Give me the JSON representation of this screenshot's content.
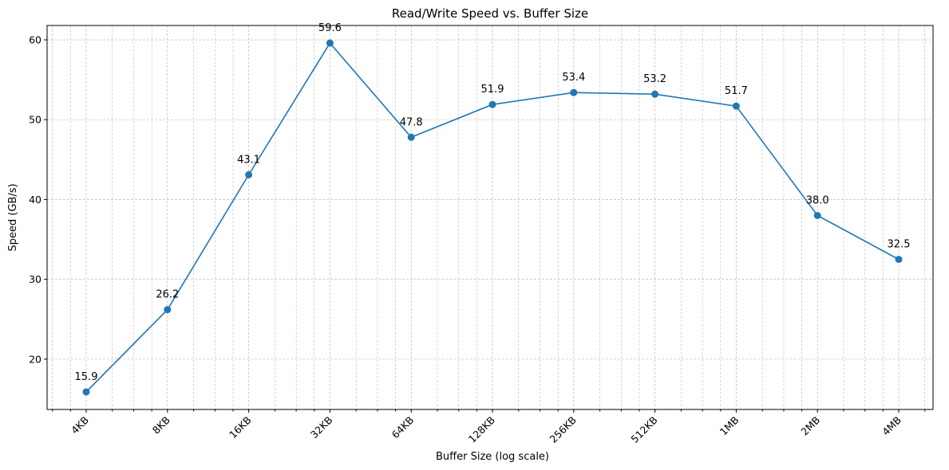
{
  "chart_data": {
    "type": "line",
    "title": "Read/Write Speed vs. Buffer Size",
    "xlabel": "Buffer Size (log scale)",
    "ylabel": "Speed (GB/s)",
    "x_scale": "log2",
    "categories": [
      "4KB",
      "8KB",
      "16KB",
      "32KB",
      "64KB",
      "128KB",
      "256KB",
      "512KB",
      "1MB",
      "2MB",
      "4MB"
    ],
    "x_kb": [
      4,
      8,
      16,
      32,
      64,
      128,
      256,
      512,
      1024,
      2048,
      4096
    ],
    "values": [
      15.9,
      26.2,
      43.1,
      59.6,
      47.8,
      51.9,
      53.4,
      53.2,
      51.7,
      38.0,
      32.5
    ],
    "y_ticks": [
      20,
      30,
      40,
      50,
      60
    ],
    "ylim": [
      13.7,
      61.8
    ],
    "grid": true,
    "line_color": "#1f77b4",
    "marker": "circle",
    "data_labels": true
  }
}
